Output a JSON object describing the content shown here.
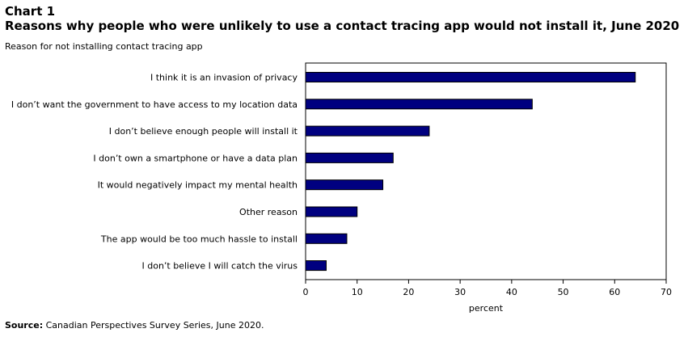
{
  "header": {
    "chart_label": "Chart 1",
    "title": "Reasons why people who were unlikely  to use a contact tracing app would not install it, June 2020"
  },
  "chart_data": {
    "type": "bar",
    "orientation": "horizontal",
    "ylabel": "Reason for not installing contact tracing app",
    "xlabel": "percent",
    "xlim": [
      0,
      70
    ],
    "xticks": [
      0,
      10,
      20,
      30,
      40,
      50,
      60,
      70
    ],
    "grid": false,
    "categories": [
      "I think it is an invasion of privacy",
      "I don’t want the government to have access to my location data",
      "I don’t believe enough people will install it",
      "I don’t own a smartphone or have a data plan",
      "It would negatively impact my mental health",
      "Other reason",
      "The app would be too much hassle to install",
      "I don’t believe I will catch the virus"
    ],
    "values": [
      64,
      44,
      24,
      17,
      15,
      10,
      8,
      4
    ],
    "colors": {
      "bar": "#000080",
      "bar_edge": "#000000"
    }
  },
  "footer": {
    "source_label": "Source:",
    "source_text": " Canadian Perspectives Survey Series, June 2020."
  }
}
